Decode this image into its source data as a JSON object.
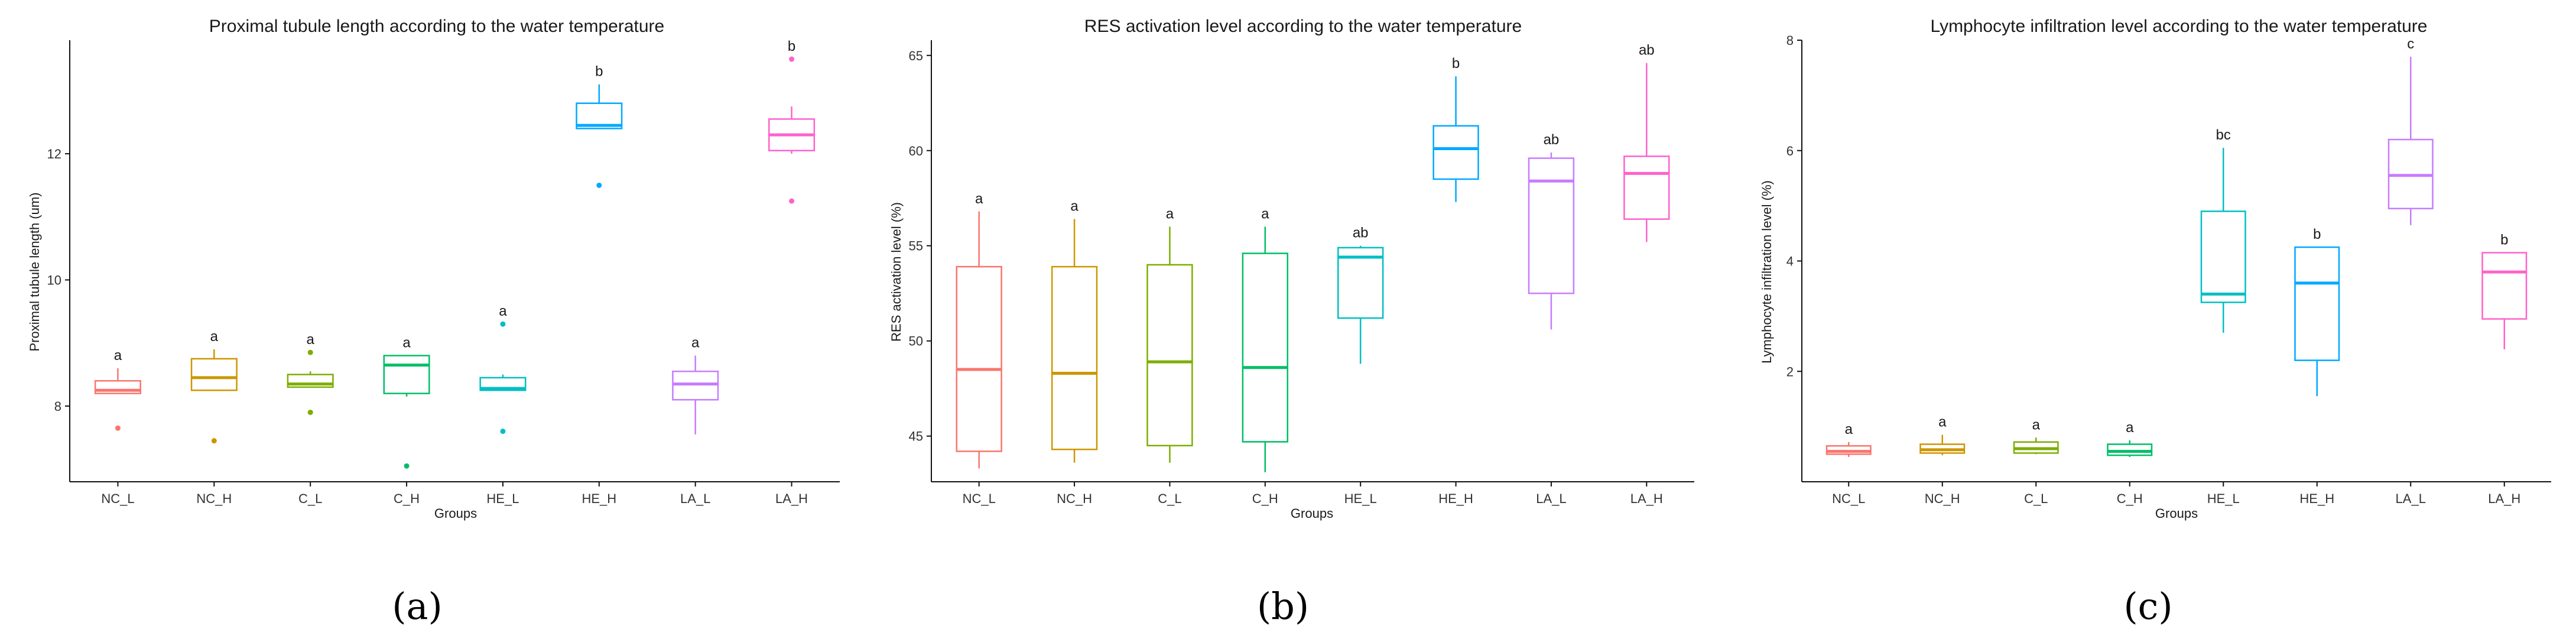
{
  "chart_data": [
    {
      "type": "boxplot",
      "panel_label": "(a)",
      "title": "Proximal tubule length according to the water temperature",
      "xlabel": "Groups",
      "ylabel": "Proximal tubule length (um)",
      "ylim": [
        6.8,
        13.8
      ],
      "yticks": [
        8,
        10,
        12
      ],
      "categories": [
        "NC_L",
        "NC_H",
        "C_L",
        "C_H",
        "HE_L",
        "HE_H",
        "LA_L",
        "LA_H"
      ],
      "colors": [
        "#F8766D",
        "#CD9600",
        "#7CAE00",
        "#00BE67",
        "#00BFC4",
        "#00A9FF",
        "#C77CFF",
        "#FF61CC"
      ],
      "boxes": [
        {
          "whisker_low": 8.2,
          "q1": 8.2,
          "median": 8.25,
          "q3": 8.4,
          "whisker_high": 8.6,
          "outliers": [
            7.65
          ],
          "sig": "a"
        },
        {
          "whisker_low": 8.25,
          "q1": 8.25,
          "median": 8.45,
          "q3": 8.75,
          "whisker_high": 8.9,
          "outliers": [
            7.45
          ],
          "sig": "a"
        },
        {
          "whisker_low": 8.3,
          "q1": 8.3,
          "median": 8.35,
          "q3": 8.5,
          "whisker_high": 8.55,
          "outliers": [
            7.9,
            8.85
          ],
          "sig": "a"
        },
        {
          "whisker_low": 8.15,
          "q1": 8.2,
          "median": 8.65,
          "q3": 8.8,
          "whisker_high": 8.8,
          "outliers": [
            7.05
          ],
          "sig": "a"
        },
        {
          "whisker_low": 8.25,
          "q1": 8.25,
          "median": 8.28,
          "q3": 8.45,
          "whisker_high": 8.5,
          "outliers": [
            7.6,
            9.3
          ],
          "sig": "a"
        },
        {
          "whisker_low": 12.4,
          "q1": 12.4,
          "median": 12.45,
          "q3": 12.8,
          "whisker_high": 13.1,
          "outliers": [
            11.5
          ],
          "sig": "b"
        },
        {
          "whisker_low": 7.55,
          "q1": 8.1,
          "median": 8.35,
          "q3": 8.55,
          "whisker_high": 8.8,
          "outliers": [],
          "sig": "a"
        },
        {
          "whisker_low": 12.0,
          "q1": 12.05,
          "median": 12.3,
          "q3": 12.55,
          "whisker_high": 12.75,
          "outliers": [
            11.25,
            13.5
          ],
          "sig": "b"
        }
      ]
    },
    {
      "type": "boxplot",
      "panel_label": "(b)",
      "title": "RES activation level according to the water temperature",
      "xlabel": "Groups",
      "ylabel": "RES activation level (%)",
      "ylim": [
        42.6,
        65.8
      ],
      "yticks": [
        45,
        50,
        55,
        60,
        65
      ],
      "categories": [
        "NC_L",
        "NC_H",
        "C_L",
        "C_H",
        "HE_L",
        "HE_H",
        "LA_L",
        "LA_H"
      ],
      "colors": [
        "#F8766D",
        "#CD9600",
        "#7CAE00",
        "#00BE67",
        "#00BFC4",
        "#00A9FF",
        "#C77CFF",
        "#FF61CC"
      ],
      "boxes": [
        {
          "whisker_low": 43.3,
          "q1": 44.2,
          "median": 48.5,
          "q3": 53.9,
          "whisker_high": 56.8,
          "outliers": [],
          "sig": "a"
        },
        {
          "whisker_low": 43.6,
          "q1": 44.3,
          "median": 48.3,
          "q3": 53.9,
          "whisker_high": 56.4,
          "outliers": [],
          "sig": "a"
        },
        {
          "whisker_low": 43.6,
          "q1": 44.5,
          "median": 48.9,
          "q3": 54.0,
          "whisker_high": 56.0,
          "outliers": [],
          "sig": "a"
        },
        {
          "whisker_low": 43.1,
          "q1": 44.7,
          "median": 48.6,
          "q3": 54.6,
          "whisker_high": 56.0,
          "outliers": [],
          "sig": "a"
        },
        {
          "whisker_low": 48.8,
          "q1": 51.2,
          "median": 54.4,
          "q3": 54.9,
          "whisker_high": 55.0,
          "outliers": [],
          "sig": "ab"
        },
        {
          "whisker_low": 57.3,
          "q1": 58.5,
          "median": 60.1,
          "q3": 61.3,
          "whisker_high": 63.9,
          "outliers": [],
          "sig": "b"
        },
        {
          "whisker_low": 50.6,
          "q1": 52.5,
          "median": 58.4,
          "q3": 59.6,
          "whisker_high": 59.9,
          "outliers": [],
          "sig": "ab"
        },
        {
          "whisker_low": 55.2,
          "q1": 56.4,
          "median": 58.8,
          "q3": 59.7,
          "whisker_high": 64.6,
          "outliers": [],
          "sig": "ab"
        }
      ]
    },
    {
      "type": "boxplot",
      "panel_label": "(c)",
      "title": "Lymphocyte infiltration level according to the water temperature",
      "xlabel": "Groups",
      "ylabel": "Lymphocyte infiltration level (%)",
      "ylim": [
        0.0,
        8.0
      ],
      "yticks": [
        2,
        4,
        6,
        8
      ],
      "categories": [
        "NC_L",
        "NC_H",
        "C_L",
        "C_H",
        "HE_L",
        "HE_H",
        "LA_L",
        "LA_H"
      ],
      "colors": [
        "#F8766D",
        "#CD9600",
        "#7CAE00",
        "#00BE67",
        "#00BFC4",
        "#00A9FF",
        "#C77CFF",
        "#FF61CC"
      ],
      "boxes": [
        {
          "whisker_low": 0.45,
          "q1": 0.5,
          "median": 0.55,
          "q3": 0.65,
          "whisker_high": 0.72,
          "outliers": [],
          "sig": "a"
        },
        {
          "whisker_low": 0.48,
          "q1": 0.52,
          "median": 0.58,
          "q3": 0.68,
          "whisker_high": 0.85,
          "outliers": [],
          "sig": "a"
        },
        {
          "whisker_low": 0.5,
          "q1": 0.52,
          "median": 0.6,
          "q3": 0.72,
          "whisker_high": 0.8,
          "outliers": [],
          "sig": "a"
        },
        {
          "whisker_low": 0.45,
          "q1": 0.48,
          "median": 0.55,
          "q3": 0.68,
          "whisker_high": 0.75,
          "outliers": [],
          "sig": "a"
        },
        {
          "whisker_low": 2.7,
          "q1": 3.25,
          "median": 3.4,
          "q3": 4.9,
          "whisker_high": 6.05,
          "outliers": [],
          "sig": "bc"
        },
        {
          "whisker_low": 1.55,
          "q1": 2.2,
          "median": 3.6,
          "q3": 4.25,
          "whisker_high": 4.25,
          "outliers": [],
          "sig": "b"
        },
        {
          "whisker_low": 4.65,
          "q1": 4.95,
          "median": 5.55,
          "q3": 6.2,
          "whisker_high": 7.7,
          "outliers": [],
          "sig": "c"
        },
        {
          "whisker_low": 2.4,
          "q1": 2.95,
          "median": 3.8,
          "q3": 4.15,
          "whisker_high": 4.15,
          "outliers": [],
          "sig": "b"
        }
      ]
    }
  ]
}
